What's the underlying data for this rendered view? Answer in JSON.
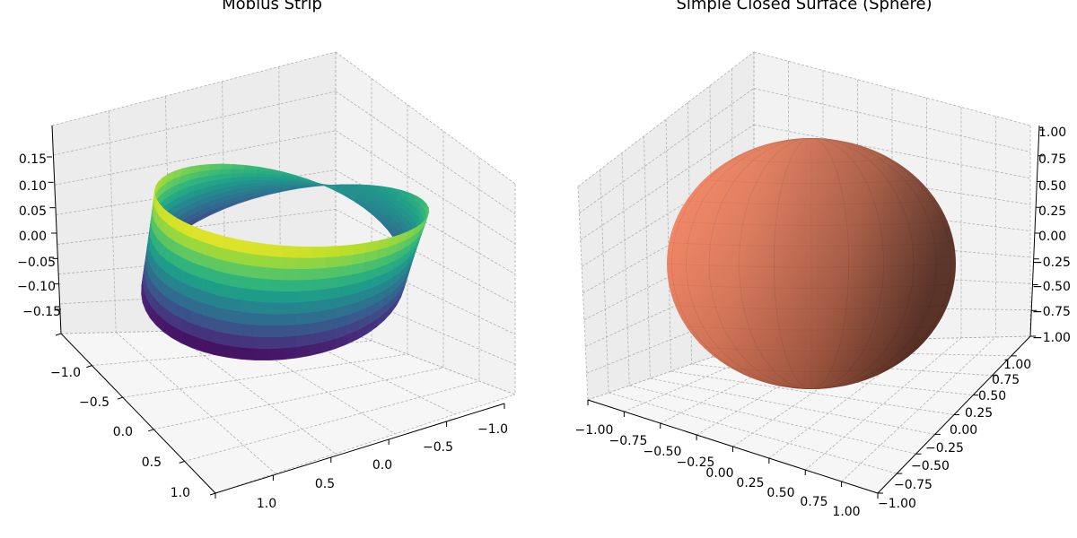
{
  "chart_data": [
    {
      "type": "surface",
      "title": "Möbius Strip",
      "surface": "mobius",
      "colormap": "viridis",
      "xlabel": "",
      "ylabel": "",
      "zlabel": "",
      "xlim": [
        -1.2,
        1.2
      ],
      "ylim": [
        -1.2,
        1.2
      ],
      "zlim": [
        -0.2,
        0.2
      ],
      "x_ticks": [
        "1.0",
        "0.5",
        "0.0",
        "−0.5",
        "−1.0"
      ],
      "y_ticks": [
        "−1.0",
        "−0.5",
        "0.0",
        "0.5",
        "1.0"
      ],
      "z_ticks": [
        "0.15",
        "0.10",
        "0.05",
        "0.00",
        "−0.05",
        "−0.10",
        "−0.15"
      ],
      "grid": true
    },
    {
      "type": "surface",
      "title": "Simple Closed Surface (Sphere)",
      "surface": "sphere",
      "color": "#ff8060",
      "xlabel": "",
      "ylabel": "",
      "zlabel": "",
      "xlim": [
        -1.0,
        1.0
      ],
      "ylim": [
        -1.0,
        1.0
      ],
      "zlim": [
        -1.0,
        1.0
      ],
      "x_ticks": [
        "−1.00",
        "−0.75",
        "−0.50",
        "−0.25",
        "0.00",
        "0.25",
        "0.50",
        "0.75",
        "1.00"
      ],
      "y_ticks": [
        "−1.00",
        "−0.75",
        "−0.50",
        "−0.25",
        "0.00",
        "0.25",
        "0.50",
        "0.75",
        "1.00"
      ],
      "z_ticks": [
        "1.00",
        "0.75",
        "0.50",
        "0.25",
        "0.00",
        "−0.25",
        "−0.50",
        "−0.75",
        "−1.00"
      ],
      "grid": true
    }
  ]
}
